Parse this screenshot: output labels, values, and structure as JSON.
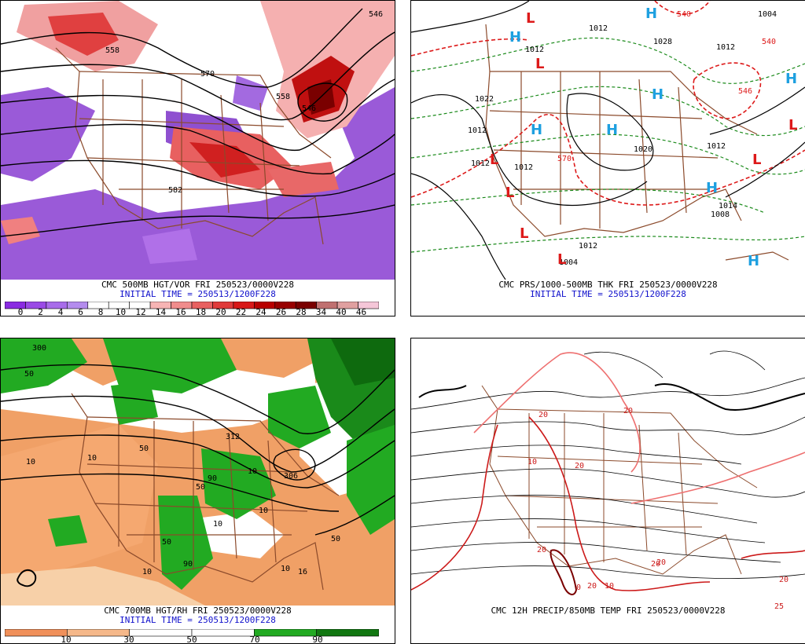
{
  "panels": [
    {
      "id": "p1",
      "caption": "CMC 500MB HGT/VOR FRI 250523/0000V228",
      "initial": "INITIAL TIME = 250513/1200F228",
      "contour_labels": [
        "558",
        "570",
        "558",
        "546",
        "582",
        "546"
      ],
      "colorbar": {
        "ticks": [
          "0",
          "2",
          "4",
          "6",
          "8",
          "10",
          "12",
          "14",
          "16",
          "18",
          "20",
          "22",
          "24",
          "26",
          "28",
          "34",
          "40",
          "46"
        ],
        "colors": [
          "#8a2be2",
          "#9a4ae6",
          "#a86cea",
          "#b48cee",
          "#ffffff",
          "#ffffff",
          "#ffffff",
          "#f7b4b4",
          "#f08c8c",
          "#e86060",
          "#e03a3a",
          "#d81818",
          "#b80000",
          "#980000",
          "#7a0000",
          "#c07070",
          "#e0a0a0",
          "#f5c6d8"
        ]
      }
    },
    {
      "id": "p2",
      "caption": "CMC PRS/1000-500MB THK FRI 250523/0000V228",
      "initial": "INITIAL TIME = 250513/1200F228",
      "contour_labels": [
        "1012",
        "1012",
        "1004",
        "1022",
        "1012",
        "1012",
        "1012",
        "1020",
        "1012",
        "1028",
        "1012",
        "1004",
        "1012",
        "1008",
        "1014",
        "540",
        "570",
        "546",
        "540"
      ],
      "symbols": {
        "high": "H",
        "low": "L"
      }
    },
    {
      "id": "p3",
      "caption": "CMC 700MB HGT/RH FRI 250523/0000V228",
      "initial": "INITIAL TIME = 250513/1200F228",
      "contour_labels": [
        "300",
        "10",
        "50",
        "10",
        "50",
        "312",
        "306",
        "10",
        "90",
        "50",
        "10",
        "10",
        "50",
        "10",
        "90",
        "50",
        "10",
        "16"
      ],
      "colorbar": {
        "ticks": [
          "10",
          "30",
          "50",
          "70",
          "90"
        ],
        "colors": [
          "#f0905a",
          "#f5b88a",
          "#ffffff",
          "#ffffff",
          "#22aa22",
          "#117711"
        ]
      }
    },
    {
      "id": "p4",
      "caption": "CMC 12H PRECIP/850MB TEMP FRI 250523/0000V228",
      "contour_labels": [
        "20",
        "20",
        "10",
        "20",
        "20",
        "10",
        "20",
        "20",
        "20",
        "25",
        "20",
        "0"
      ]
    }
  ]
}
